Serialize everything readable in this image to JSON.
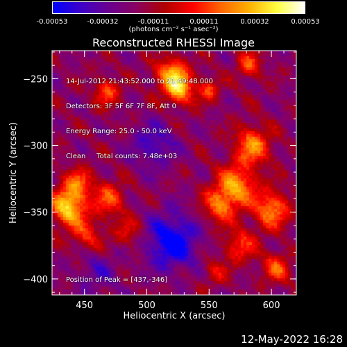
{
  "app": {
    "footer_timestamp": "12-May-2022 16:28"
  },
  "colorbar": {
    "tick_labels": [
      "-0.00053",
      "-0.00032",
      "-0.00011",
      "0.00011",
      "0.00032",
      "0.00053"
    ],
    "units_label": "(photons cm⁻² s⁻¹ asec⁻²)",
    "colors": [
      "#0000ff",
      "#3d00c8",
      "#6a0090",
      "#8a0060",
      "#b00000",
      "#ff0000",
      "#ff6600",
      "#ffb000",
      "#ffff40",
      "#ffffff"
    ]
  },
  "chart_data": {
    "type": "heatmap",
    "title": "Reconstructed RHESSI Image",
    "xlabel": "Heliocentric X (arcsec)",
    "ylabel": "Heliocentric Y (arcsec)",
    "xlim": [
      424,
      620
    ],
    "ylim": [
      -412,
      -229
    ],
    "x_ticks": [
      450,
      500,
      550,
      600
    ],
    "y_ticks": [
      -250,
      -300,
      -350,
      -400
    ],
    "value_range": [
      -0.00053,
      0.00053
    ],
    "info_lines": [
      "14-Jul-2012 21:43:52.000 to 21:49:48.000",
      "Detectors: 3F 5F 6F 7F 8F, Att 0",
      "Energy Range: 25.0 - 50.0 keV",
      "Clean     Total counts: 7.48e+03"
    ],
    "peak_label": "Position of Peak = [437,-346]",
    "peak": [
      437,
      -346
    ],
    "sources": [
      {
        "x": 437,
        "y": -346,
        "amp": 0.00053,
        "sigma": 10
      },
      {
        "x": 470,
        "y": -340,
        "amp": 0.0003,
        "sigma": 9
      },
      {
        "x": 445,
        "y": -328,
        "amp": 0.0003,
        "sigma": 8
      },
      {
        "x": 452,
        "y": -368,
        "amp": 0.00024,
        "sigma": 9
      },
      {
        "x": 485,
        "y": -365,
        "amp": 0.0002,
        "sigma": 8
      },
      {
        "x": 468,
        "y": -260,
        "amp": 0.00032,
        "sigma": 7
      },
      {
        "x": 520,
        "y": -247,
        "amp": 0.00045,
        "sigma": 9
      },
      {
        "x": 527,
        "y": -259,
        "amp": 0.00038,
        "sigma": 8
      },
      {
        "x": 550,
        "y": -258,
        "amp": 0.00028,
        "sigma": 6
      },
      {
        "x": 582,
        "y": -240,
        "amp": 0.0003,
        "sigma": 7
      },
      {
        "x": 585,
        "y": -300,
        "amp": 0.0004,
        "sigma": 10
      },
      {
        "x": 572,
        "y": -330,
        "amp": 0.00042,
        "sigma": 11
      },
      {
        "x": 600,
        "y": -348,
        "amp": 0.0004,
        "sigma": 10
      },
      {
        "x": 558,
        "y": -345,
        "amp": 0.00033,
        "sigma": 9
      },
      {
        "x": 575,
        "y": -375,
        "amp": 0.00028,
        "sigma": 9
      },
      {
        "x": 604,
        "y": -392,
        "amp": 0.0003,
        "sigma": 8
      },
      {
        "x": 555,
        "y": -395,
        "amp": 0.00018,
        "sigma": 7
      },
      {
        "x": 520,
        "y": -372,
        "amp": -0.0004,
        "sigma": 14
      },
      {
        "x": 505,
        "y": -300,
        "amp": -0.00022,
        "sigma": 12
      },
      {
        "x": 460,
        "y": -395,
        "amp": -0.00015,
        "sigma": 12
      }
    ]
  }
}
